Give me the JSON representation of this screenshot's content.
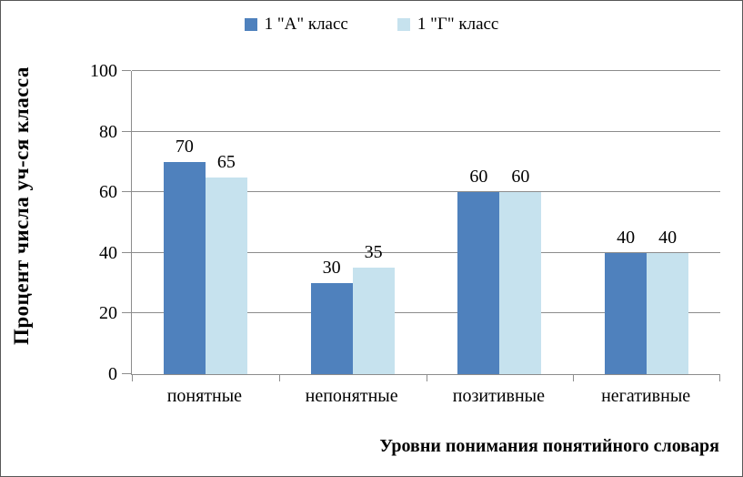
{
  "chart_data": {
    "type": "bar",
    "title": "",
    "categories": [
      "понятные",
      "непонятные",
      "позитивные",
      "негативные"
    ],
    "series": [
      {
        "name": "1 \"А\" класс",
        "color": "#4F81BD",
        "values": [
          70,
          30,
          60,
          40
        ]
      },
      {
        "name": "1 \"Г\" класс",
        "color": "#C6E2EE",
        "values": [
          65,
          35,
          60,
          40
        ]
      }
    ],
    "xlabel": "Уровни понимания понятийного словаря",
    "ylabel": "Процент числа уч-ся класса",
    "ylim": [
      0,
      100
    ],
    "yticks": [
      0,
      20,
      40,
      60,
      80,
      100
    ],
    "grid": true,
    "legend_position": "top",
    "data_labels": true,
    "gridline_color": "#8c8c8c"
  }
}
